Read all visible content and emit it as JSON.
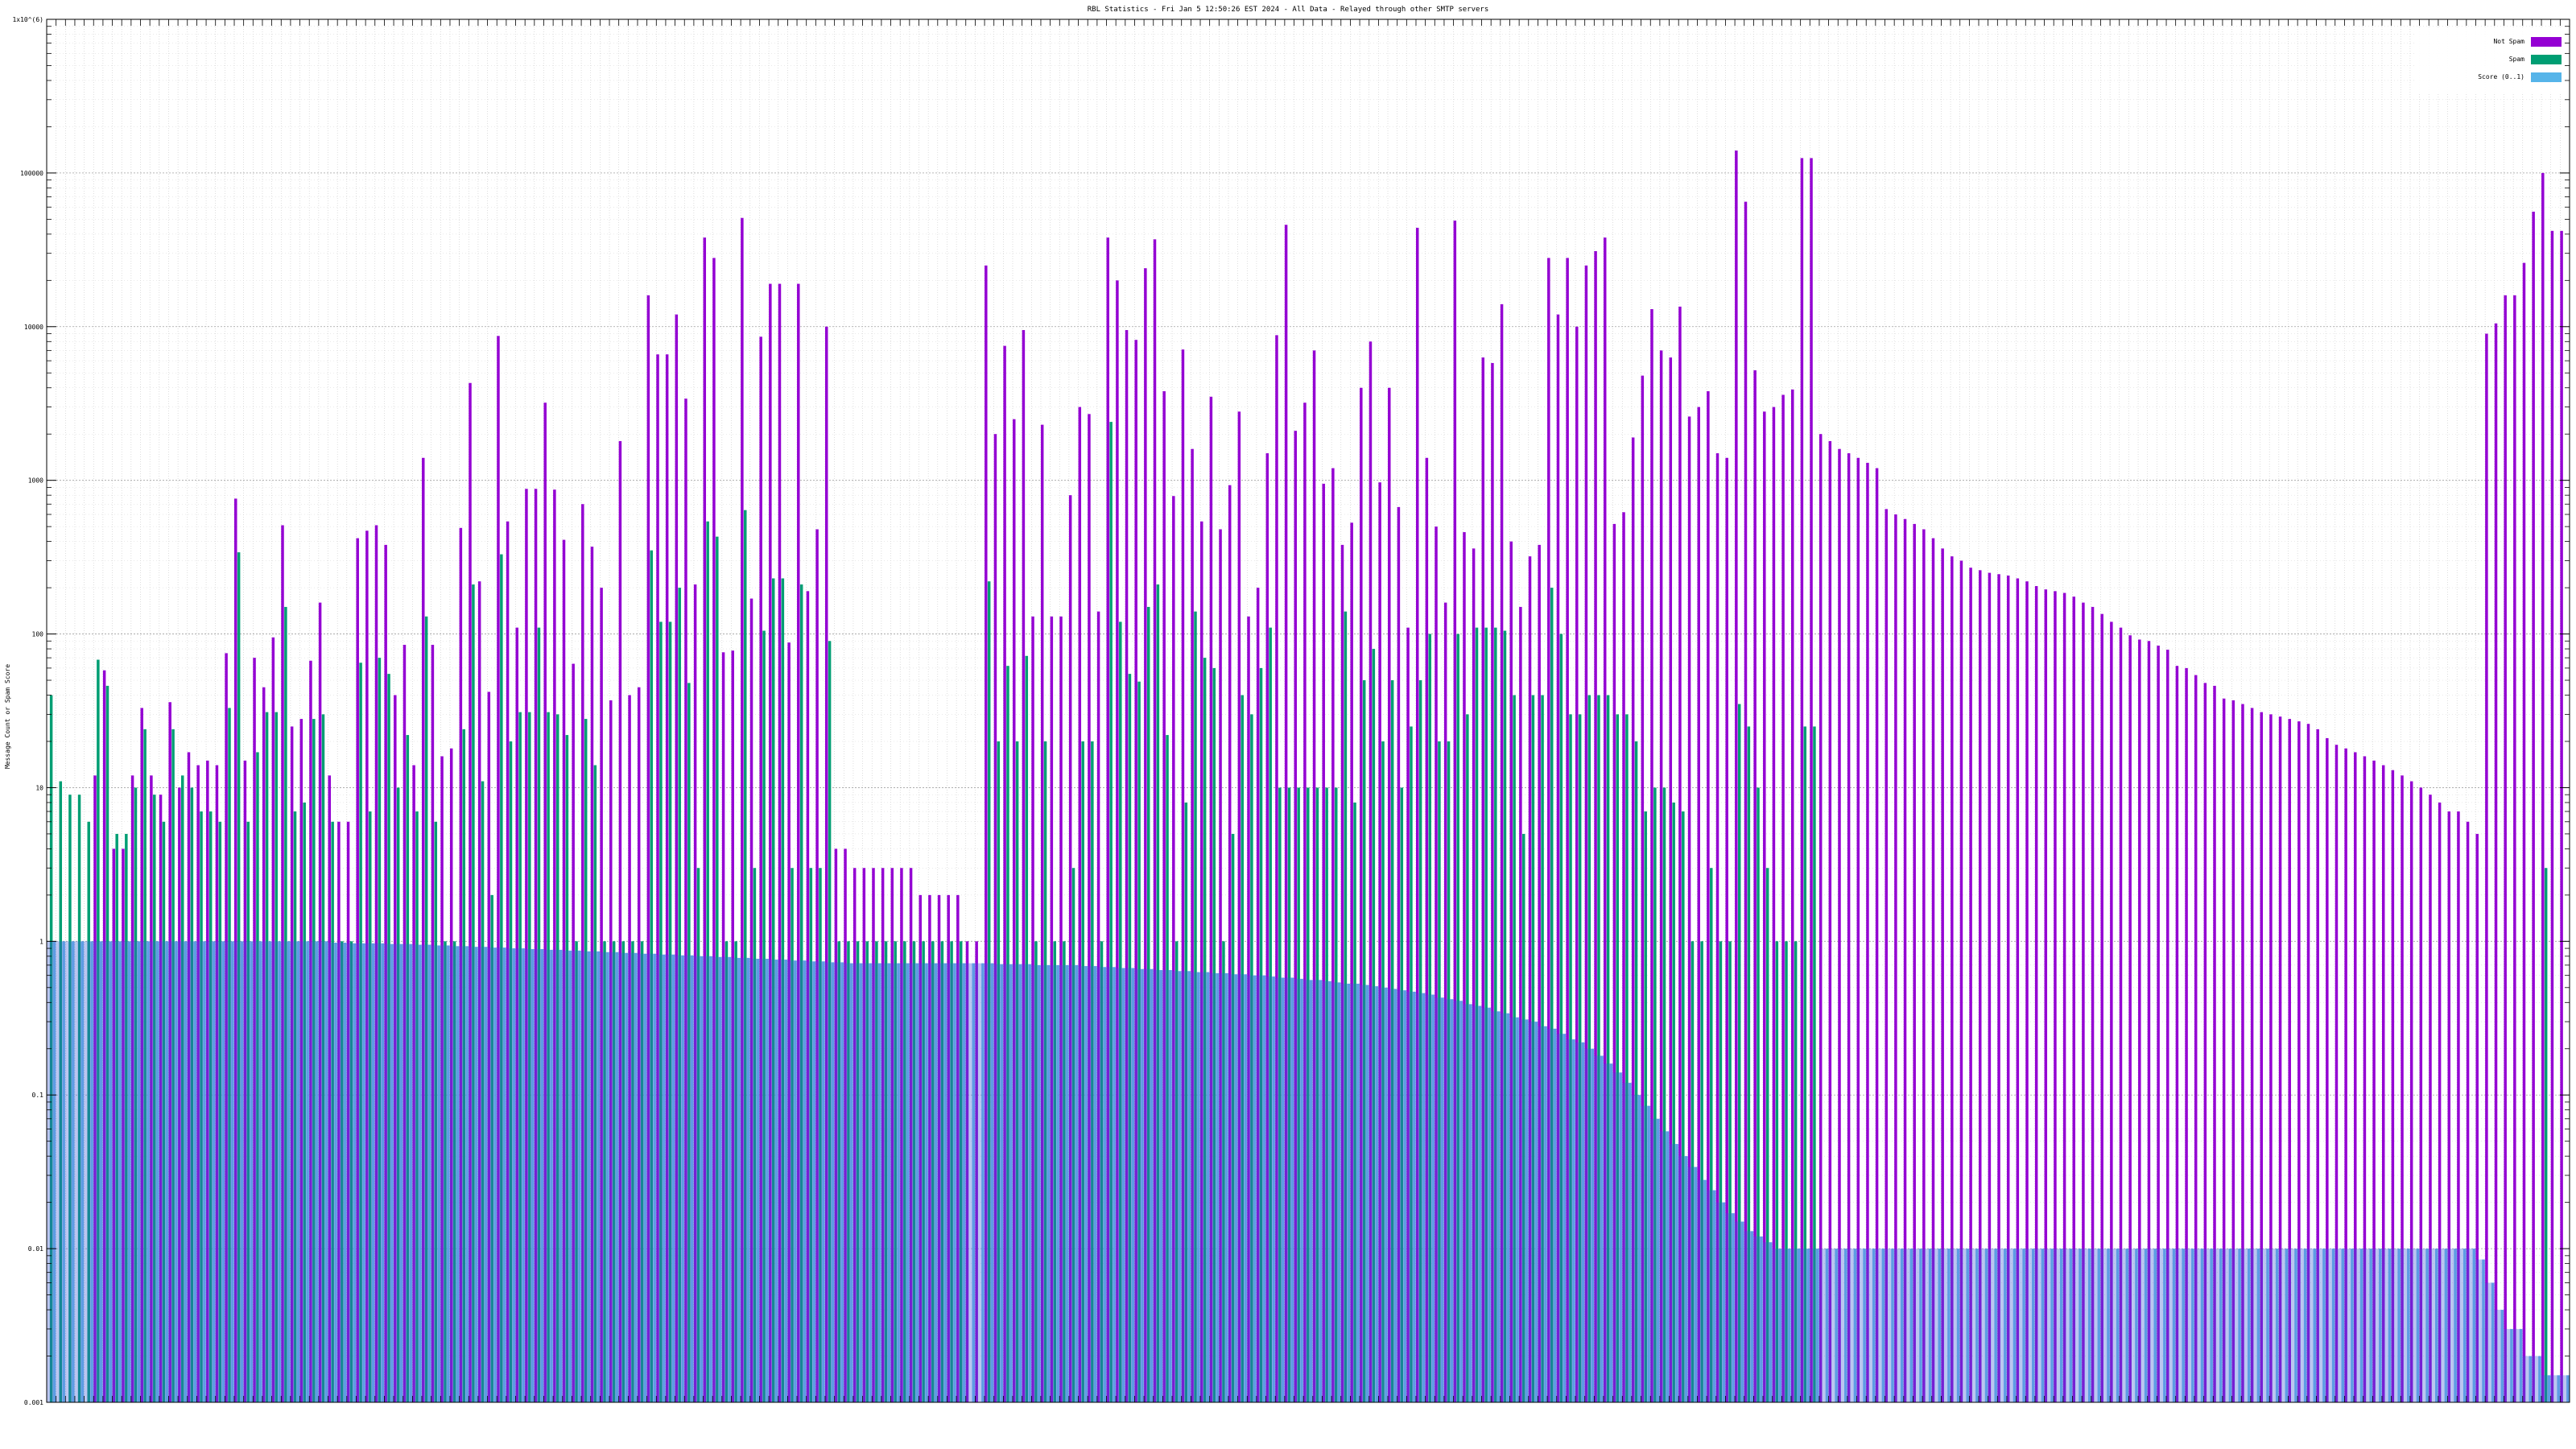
{
  "chart_data": {
    "type": "bar",
    "title": "RBL Statistics - Fri Jan  5 12:50:26 EST 2024 - All Data - Relayed through other SMTP servers",
    "ylabel": "Message Count or Spam Score",
    "xlabel": "",
    "yscale": "log",
    "ylim": [
      0.001,
      1000000
    ],
    "ytick_labels": [
      {
        "value": 0.001,
        "label": "0.001"
      },
      {
        "value": 0.01,
        "label": "0.01"
      },
      {
        "value": 0.1,
        "label": "0.1"
      },
      {
        "value": 1,
        "label": "1"
      },
      {
        "value": 10,
        "label": "10"
      },
      {
        "value": 100,
        "label": "100"
      },
      {
        "value": 1000,
        "label": "1000"
      },
      {
        "value": 10000,
        "label": "10000"
      },
      {
        "value": 100000,
        "label": "100000"
      },
      {
        "value": 1000000,
        "label": "1x10^(6)"
      }
    ],
    "grid": true,
    "legend_position": "top-right",
    "legend": [
      {
        "name": "Not Spam",
        "color": "#9400d3"
      },
      {
        "name": "Spam",
        "color": "#009e73"
      },
      {
        "name": "Score (0..1)",
        "color": "#56b4e9"
      }
    ],
    "series_colors": {
      "not_spam": "#9400d3",
      "spam": "#009e73",
      "score": "#56b4e9",
      "overlap": "#3b5bd6"
    },
    "groups": [
      [
        0,
        40,
        1
      ],
      [
        0,
        11,
        1
      ],
      [
        0,
        9,
        1
      ],
      [
        0,
        9,
        1
      ],
      [
        0,
        6,
        1
      ],
      [
        12,
        68,
        1
      ],
      [
        58,
        46,
        1
      ],
      [
        4,
        5,
        1
      ],
      [
        4,
        5,
        1
      ],
      [
        12,
        10,
        1
      ],
      [
        33,
        24,
        1
      ],
      [
        12,
        9,
        1
      ],
      [
        9,
        6,
        1
      ],
      [
        36,
        24,
        1
      ],
      [
        10,
        12,
        1
      ],
      [
        17,
        10,
        1
      ],
      [
        14,
        7,
        1
      ],
      [
        15,
        7,
        1
      ],
      [
        14,
        6,
        1
      ],
      [
        75,
        33,
        1
      ],
      [
        760,
        340,
        1
      ],
      [
        15,
        6,
        1
      ],
      [
        70,
        17,
        1
      ],
      [
        45,
        31,
        1
      ],
      [
        95,
        31,
        1
      ],
      [
        510,
        150,
        1
      ],
      [
        25,
        7,
        1
      ],
      [
        28,
        8,
        1
      ],
      [
        67,
        28,
        1
      ],
      [
        160,
        30,
        1
      ],
      [
        12,
        6,
        0.98
      ],
      [
        6,
        1,
        0.98
      ],
      [
        6,
        1,
        0.97
      ],
      [
        420,
        65,
        0.97
      ],
      [
        470,
        7,
        0.97
      ],
      [
        510,
        70,
        0.97
      ],
      [
        380,
        55,
        0.96
      ],
      [
        40,
        10,
        0.96
      ],
      [
        85,
        22,
        0.96
      ],
      [
        14,
        7,
        0.95
      ],
      [
        1400,
        130,
        0.95
      ],
      [
        85,
        6,
        0.94
      ],
      [
        16,
        1,
        0.94
      ],
      [
        18,
        1,
        0.93
      ],
      [
        490,
        24,
        0.93
      ],
      [
        4300,
        210,
        0.92
      ],
      [
        220,
        11,
        0.92
      ],
      [
        42,
        2,
        0.91
      ],
      [
        8700,
        330,
        0.91
      ],
      [
        540,
        20,
        0.9
      ],
      [
        110,
        31,
        0.9
      ],
      [
        880,
        31,
        0.89
      ],
      [
        880,
        110,
        0.89
      ],
      [
        3200,
        31,
        0.88
      ],
      [
        870,
        30,
        0.88
      ],
      [
        410,
        22,
        0.87
      ],
      [
        64,
        1,
        0.87
      ],
      [
        700,
        28,
        0.86
      ],
      [
        370,
        14,
        0.86
      ],
      [
        200,
        1,
        0.85
      ],
      [
        37,
        1,
        0.85
      ],
      [
        1800,
        1,
        0.84
      ],
      [
        40,
        1,
        0.84
      ],
      [
        45,
        1,
        0.83
      ],
      [
        16000,
        350,
        0.83
      ],
      [
        6600,
        120,
        0.82
      ],
      [
        6600,
        120,
        0.82
      ],
      [
        12000,
        200,
        0.81
      ],
      [
        3400,
        48,
        0.81
      ],
      [
        210,
        3,
        0.8
      ],
      [
        38000,
        540,
        0.8
      ],
      [
        28000,
        430,
        0.79
      ],
      [
        76,
        1,
        0.79
      ],
      [
        78,
        1,
        0.78
      ],
      [
        51000,
        640,
        0.78
      ],
      [
        170,
        3,
        0.77
      ],
      [
        8600,
        105,
        0.77
      ],
      [
        19000,
        230,
        0.76
      ],
      [
        19000,
        230,
        0.76
      ],
      [
        88,
        3,
        0.75
      ],
      [
        19000,
        210,
        0.75
      ],
      [
        190,
        3,
        0.74
      ],
      [
        480,
        3,
        0.74
      ],
      [
        10000,
        90,
        0.73
      ],
      [
        4,
        1,
        0.73
      ],
      [
        4,
        1,
        0.72
      ],
      [
        3,
        1,
        0.72
      ],
      [
        3,
        1,
        0.72
      ],
      [
        3,
        1,
        0.72
      ],
      [
        3,
        1,
        0.72
      ],
      [
        3,
        1,
        0.72
      ],
      [
        3,
        1,
        0.72
      ],
      [
        3,
        1,
        0.72
      ],
      [
        2,
        1,
        0.72
      ],
      [
        2,
        1,
        0.72
      ],
      [
        2,
        1,
        0.72
      ],
      [
        2,
        1,
        0.72
      ],
      [
        2,
        1,
        0.72
      ],
      [
        1,
        0.001,
        0.72
      ],
      [
        1,
        0.001,
        0.72
      ],
      [
        25000,
        220,
        0.72
      ],
      [
        2000,
        20,
        0.71
      ],
      [
        7500,
        62,
        0.71
      ],
      [
        2500,
        20,
        0.71
      ],
      [
        9500,
        72,
        0.71
      ],
      [
        130,
        1,
        0.7
      ],
      [
        2300,
        20,
        0.7
      ],
      [
        130,
        1,
        0.7
      ],
      [
        130,
        1,
        0.7
      ],
      [
        800,
        3,
        0.7
      ],
      [
        3000,
        20,
        0.69
      ],
      [
        2700,
        20,
        0.69
      ],
      [
        140,
        1,
        0.68
      ],
      [
        38000,
        2400,
        0.68
      ],
      [
        20000,
        120,
        0.67
      ],
      [
        9500,
        55,
        0.67
      ],
      [
        8200,
        49,
        0.66
      ],
      [
        24000,
        150,
        0.66
      ],
      [
        37000,
        210,
        0.65
      ],
      [
        3800,
        22,
        0.65
      ],
      [
        790,
        1,
        0.64
      ],
      [
        7100,
        8,
        0.64
      ],
      [
        1600,
        140,
        0.63
      ],
      [
        540,
        70,
        0.63
      ],
      [
        3500,
        60,
        0.62
      ],
      [
        480,
        1,
        0.62
      ],
      [
        930,
        5,
        0.61
      ],
      [
        2800,
        40,
        0.61
      ],
      [
        130,
        30,
        0.6
      ],
      [
        200,
        60,
        0.6
      ],
      [
        1500,
        110,
        0.59
      ],
      [
        8800,
        10,
        0.58
      ],
      [
        46000,
        10,
        0.58
      ],
      [
        2100,
        10,
        0.57
      ],
      [
        3200,
        10,
        0.56
      ],
      [
        7000,
        10,
        0.56
      ],
      [
        950,
        10,
        0.55
      ],
      [
        1200,
        10,
        0.54
      ],
      [
        380,
        140,
        0.53
      ],
      [
        530,
        8,
        0.53
      ],
      [
        4000,
        50,
        0.52
      ],
      [
        8000,
        80,
        0.51
      ],
      [
        970,
        20,
        0.5
      ],
      [
        4000,
        50,
        0.49
      ],
      [
        670,
        10,
        0.48
      ],
      [
        110,
        25,
        0.47
      ],
      [
        44000,
        50,
        0.46
      ],
      [
        1400,
        100,
        0.45
      ],
      [
        500,
        20,
        0.43
      ],
      [
        160,
        20,
        0.42
      ],
      [
        49000,
        100,
        0.41
      ],
      [
        460,
        30,
        0.39
      ],
      [
        360,
        110,
        0.38
      ],
      [
        6300,
        110,
        0.37
      ],
      [
        5800,
        110,
        0.35
      ],
      [
        14000,
        105,
        0.34
      ],
      [
        400,
        40,
        0.32
      ],
      [
        150,
        5,
        0.31
      ],
      [
        320,
        40,
        0.3
      ],
      [
        380,
        40,
        0.28
      ],
      [
        28000,
        200,
        0.27
      ],
      [
        12000,
        100,
        0.25
      ],
      [
        28000,
        30,
        0.23
      ],
      [
        10000,
        30,
        0.22
      ],
      [
        25000,
        40,
        0.2
      ],
      [
        31000,
        40,
        0.18
      ],
      [
        38000,
        40,
        0.16
      ],
      [
        520,
        30,
        0.14
      ],
      [
        620,
        30,
        0.12
      ],
      [
        1900,
        20,
        0.1
      ],
      [
        4800,
        7,
        0.085
      ],
      [
        13000,
        10,
        0.07
      ],
      [
        7000,
        10,
        0.058
      ],
      [
        6300,
        8,
        0.048
      ],
      [
        13500,
        7,
        0.04
      ],
      [
        2600,
        1,
        0.034
      ],
      [
        3000,
        1,
        0.028
      ],
      [
        3800,
        3,
        0.024
      ],
      [
        1500,
        1,
        0.02
      ],
      [
        1400,
        1,
        0.017
      ],
      [
        140000,
        35,
        0.015
      ],
      [
        65000,
        25,
        0.013
      ],
      [
        5200,
        10,
        0.012
      ],
      [
        2800,
        3,
        0.011
      ],
      [
        3000,
        1,
        0.01
      ],
      [
        3600,
        1,
        0.01
      ],
      [
        3900,
        1,
        0.01
      ],
      [
        125000,
        25,
        0.01
      ],
      [
        125000,
        25,
        0.01
      ],
      [
        2000,
        0.001,
        0.01
      ],
      [
        1800,
        0.001,
        0.01
      ],
      [
        1600,
        0.001,
        0.01
      ],
      [
        1500,
        0.001,
        0.01
      ],
      [
        1400,
        0.001,
        0.01
      ],
      [
        1300,
        0.001,
        0.01
      ],
      [
        1200,
        0.001,
        0.01
      ],
      [
        650,
        0.001,
        0.01
      ],
      [
        600,
        0.001,
        0.01
      ],
      [
        560,
        0.001,
        0.01
      ],
      [
        520,
        0.001,
        0.01
      ],
      [
        480,
        0.001,
        0.01
      ],
      [
        420,
        0.001,
        0.01
      ],
      [
        360,
        0.001,
        0.01
      ],
      [
        320,
        0.001,
        0.01
      ],
      [
        300,
        0.001,
        0.01
      ],
      [
        270,
        0.001,
        0.01
      ],
      [
        260,
        0.001,
        0.01
      ],
      [
        250,
        0.001,
        0.01
      ],
      [
        245,
        0.001,
        0.01
      ],
      [
        240,
        0.001,
        0.01
      ],
      [
        230,
        0.001,
        0.01
      ],
      [
        220,
        0.001,
        0.01
      ],
      [
        205,
        0.001,
        0.01
      ],
      [
        195,
        0.001,
        0.01
      ],
      [
        190,
        0.001,
        0.01
      ],
      [
        185,
        0.001,
        0.01
      ],
      [
        175,
        0.001,
        0.01
      ],
      [
        160,
        0.001,
        0.01
      ],
      [
        150,
        0.001,
        0.01
      ],
      [
        135,
        0.001,
        0.01
      ],
      [
        120,
        0.001,
        0.01
      ],
      [
        110,
        0.001,
        0.01
      ],
      [
        98,
        0.001,
        0.01
      ],
      [
        92,
        0.001,
        0.01
      ],
      [
        90,
        0.001,
        0.01
      ],
      [
        84,
        0.001,
        0.01
      ],
      [
        79,
        0.001,
        0.01
      ],
      [
        62,
        0.001,
        0.01
      ],
      [
        60,
        0.001,
        0.01
      ],
      [
        54,
        0.001,
        0.01
      ],
      [
        48,
        0.001,
        0.01
      ],
      [
        46,
        0.001,
        0.01
      ],
      [
        38,
        0.001,
        0.01
      ],
      [
        37,
        0.001,
        0.01
      ],
      [
        35,
        0.001,
        0.01
      ],
      [
        33,
        0.001,
        0.01
      ],
      [
        31,
        0.001,
        0.01
      ],
      [
        30,
        0.001,
        0.01
      ],
      [
        29,
        0.001,
        0.01
      ],
      [
        28,
        0.001,
        0.01
      ],
      [
        27,
        0.001,
        0.01
      ],
      [
        26,
        0.001,
        0.01
      ],
      [
        24,
        0.001,
        0.01
      ],
      [
        21,
        0.001,
        0.01
      ],
      [
        19,
        0.001,
        0.01
      ],
      [
        18,
        0.001,
        0.01
      ],
      [
        17,
        0.001,
        0.01
      ],
      [
        16,
        0.001,
        0.01
      ],
      [
        15,
        0.001,
        0.01
      ],
      [
        14,
        0.001,
        0.01
      ],
      [
        13,
        0.001,
        0.01
      ],
      [
        12,
        0.001,
        0.01
      ],
      [
        11,
        0.001,
        0.01
      ],
      [
        10,
        0.001,
        0.01
      ],
      [
        9,
        0.001,
        0.01
      ],
      [
        8,
        0.001,
        0.01
      ],
      [
        7,
        0.001,
        0.01
      ],
      [
        7,
        0.001,
        0.01
      ],
      [
        6,
        0.001,
        0.01
      ],
      [
        5,
        0.001,
        0.0085
      ],
      [
        9000,
        0.001,
        0.006
      ],
      [
        10500,
        0.001,
        0.004
      ],
      [
        16000,
        0.001,
        0.003
      ],
      [
        16000,
        0.001,
        0.003
      ],
      [
        26000,
        0.001,
        0.002
      ],
      [
        56000,
        0.001,
        0.002
      ],
      [
        100000,
        3,
        0.0015
      ],
      [
        42000,
        0.001,
        0.0015
      ],
      [
        42000,
        0.001,
        0.0015
      ]
    ]
  }
}
